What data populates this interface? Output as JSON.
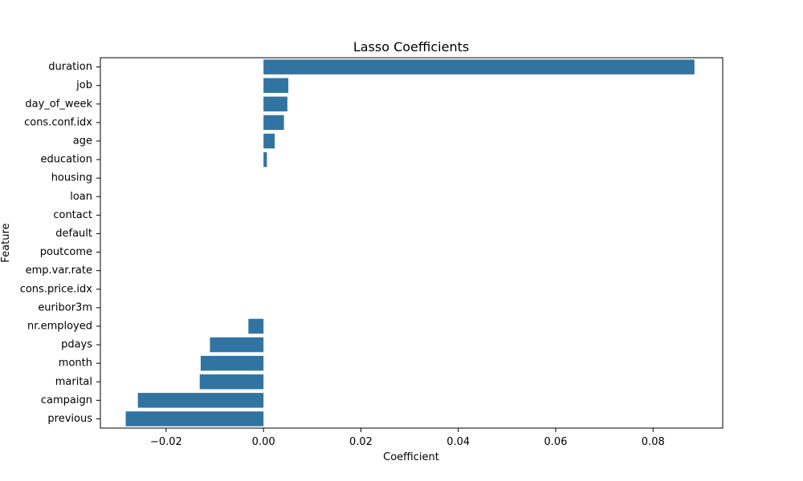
{
  "chart_data": {
    "type": "bar",
    "orientation": "horizontal",
    "title": "Lasso Coefficients",
    "xlabel": "Coefficient",
    "ylabel": "Feature",
    "xlim": [
      -0.0335,
      0.0943
    ],
    "grid": false,
    "legend": "none",
    "bar_color": "#3274a1",
    "x_ticks": [
      -0.02,
      0.0,
      0.02,
      0.04,
      0.06,
      0.08
    ],
    "x_tick_labels": [
      "−0.02",
      "0.00",
      "0.02",
      "0.04",
      "0.06",
      "0.08"
    ],
    "categories": [
      "duration",
      "job",
      "day_of_week",
      "cons.conf.idx",
      "age",
      "education",
      "housing",
      "loan",
      "contact",
      "default",
      "poutcome",
      "emp.var.rate",
      "cons.price.idx",
      "euribor3m",
      "nr.employed",
      "pdays",
      "month",
      "marital",
      "campaign",
      "previous"
    ],
    "values": [
      0.0885,
      0.0051,
      0.0049,
      0.0042,
      0.0023,
      0.0007,
      0.0,
      0.0,
      0.0,
      0.0,
      0.0,
      0.0,
      0.0,
      0.0,
      -0.0031,
      -0.011,
      -0.0129,
      -0.0131,
      -0.0258,
      -0.0283
    ]
  }
}
